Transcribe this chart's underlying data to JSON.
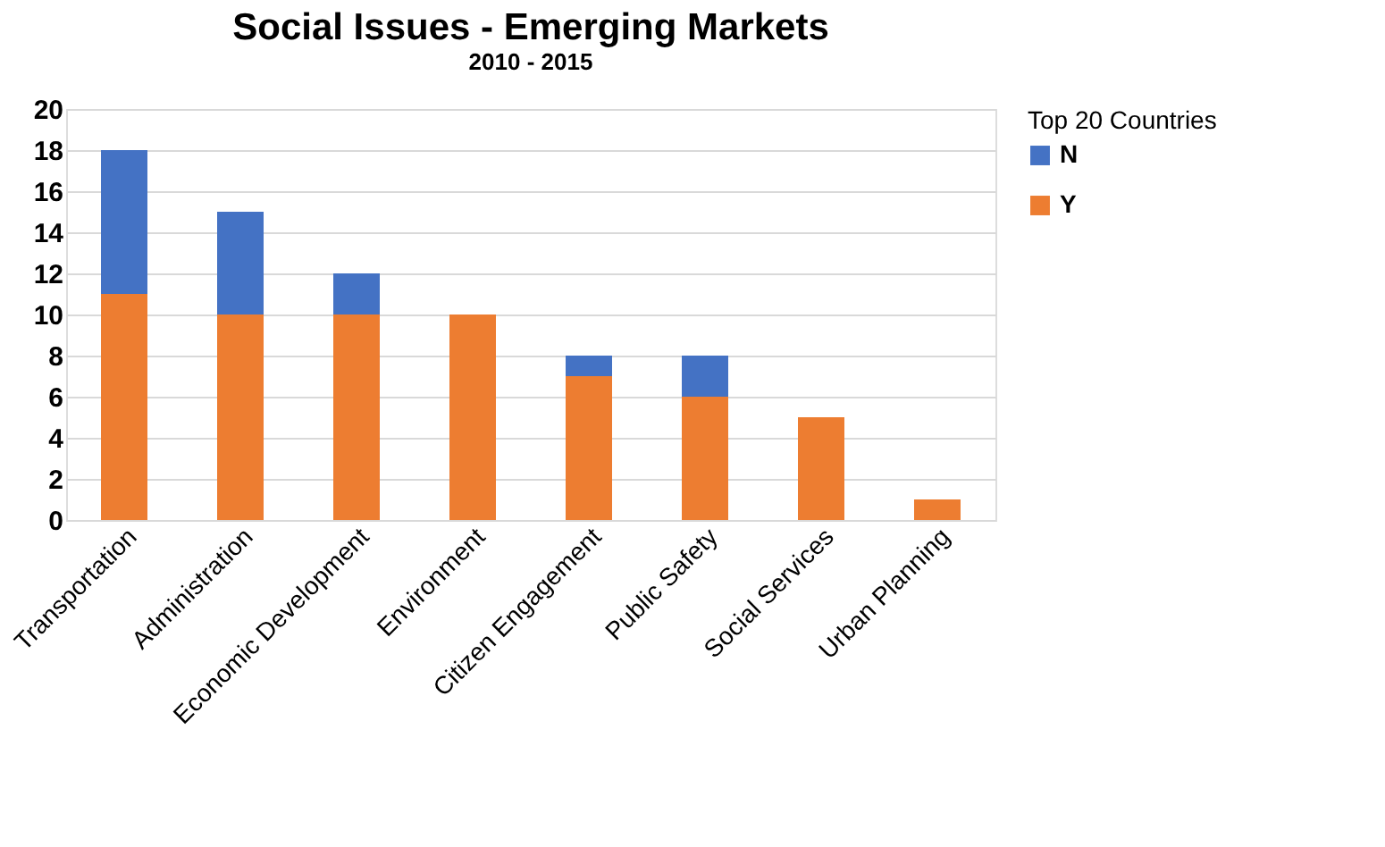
{
  "chart_data": {
    "type": "bar",
    "title": "Social Issues - Emerging Markets",
    "subtitle": "2010 - 2015",
    "categories": [
      "Transportation",
      "Administration",
      "Economic Development",
      "Environment",
      "Citizen Engagement",
      "Public Safety",
      "Social Services",
      "Urban Planning"
    ],
    "series": [
      {
        "name": "Y",
        "color": "#ed7d31",
        "values": [
          11,
          10,
          10,
          10,
          7,
          6,
          5,
          1
        ]
      },
      {
        "name": "N",
        "color": "#4472c4",
        "values": [
          7,
          5,
          2,
          0,
          1,
          2,
          0,
          0
        ]
      }
    ],
    "stacked": true,
    "ylim": [
      0,
      20
    ],
    "yticks": [
      0,
      2,
      4,
      6,
      8,
      10,
      12,
      14,
      16,
      18,
      20
    ],
    "grid": "y",
    "legend": "right",
    "legend_title": "Top 20 Countries"
  }
}
